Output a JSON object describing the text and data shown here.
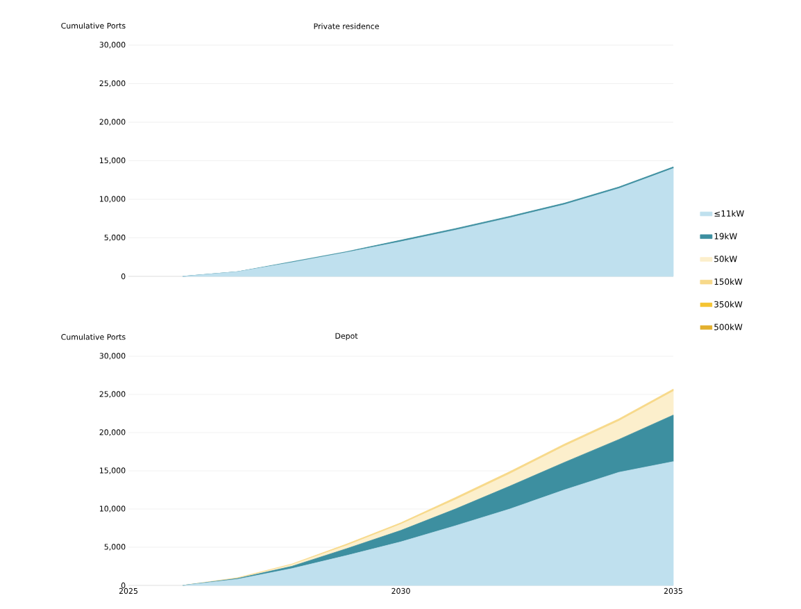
{
  "chart_data": [
    {
      "type": "area",
      "title": "Private residence",
      "ylabel": "Cumulative Ports",
      "stacked": true,
      "grid": "y",
      "legend": false,
      "tick_labels": "y",
      "x": [
        2026,
        2027,
        2028,
        2029,
        2030,
        2031,
        2032,
        2033,
        2034,
        2035
      ],
      "xlim": [
        2025,
        2035
      ],
      "xticks": [
        2025,
        2030,
        2035
      ],
      "ylim": [
        0,
        30000
      ],
      "yticks": [
        0,
        {
          "value": 5000,
          "label": "5,000"
        },
        {
          "value": 10000,
          "label": "10,000"
        },
        {
          "value": 15000,
          "label": "15,000"
        },
        {
          "value": 20000,
          "label": "20,000"
        },
        {
          "value": 25000,
          "label": "25,000"
        },
        {
          "value": 30000,
          "label": "30,000"
        }
      ],
      "series": [
        {
          "color": "#bfe0ee",
          "values": [
            0,
            600,
            1800,
            3100,
            4500,
            6000,
            7600,
            9300,
            11400,
            14000
          ]
        },
        {
          "color": "#3d8fa0",
          "values": [
            0,
            0,
            100,
            100,
            200,
            200,
            200,
            200,
            200,
            200
          ]
        }
      ]
    },
    {
      "type": "area",
      "title": "Depot",
      "ylabel": "Cumulative Ports",
      "stacked": true,
      "grid": "y",
      "legend": "right",
      "x": [
        2026,
        2027,
        2028,
        2029,
        2030,
        2031,
        2032,
        2033,
        2034,
        2035
      ],
      "xlim": [
        2025,
        2035
      ],
      "xticks": [
        2025,
        2030,
        2035
      ],
      "ylim": [
        0,
        30000
      ],
      "yticks": [
        0,
        {
          "value": 5000,
          "label": "5,000"
        },
        {
          "value": 10000,
          "label": "10,000"
        },
        {
          "value": 15000,
          "label": "15,000"
        },
        {
          "value": 20000,
          "label": "20,000"
        },
        {
          "value": 25000,
          "label": "25,000"
        },
        {
          "value": 30000,
          "label": "30,000"
        }
      ],
      "series": [
        {
          "name": "≤11kW",
          "color": "#bfe0ee",
          "values": [
            0,
            800,
            2200,
            3900,
            5700,
            7800,
            10000,
            12500,
            14800,
            16200
          ]
        },
        {
          "name": "19kW",
          "color": "#3d8fa0",
          "values": [
            0,
            100,
            300,
            900,
            1500,
            2200,
            3000,
            3600,
            4300,
            6100
          ]
        },
        {
          "name": "50kW",
          "color": "#fcefcc",
          "values": [
            0,
            0,
            200,
            400,
            800,
            1200,
            1600,
            2100,
            2400,
            3100
          ]
        },
        {
          "name": "150kW",
          "color": "#f7d98a",
          "values": [
            0,
            100,
            100,
            200,
            200,
            300,
            300,
            300,
            300,
            300
          ]
        },
        {
          "name": "350kW",
          "color": "#f5c431",
          "values": [
            null,
            null,
            null,
            null,
            null,
            null,
            null,
            null,
            null,
            null
          ]
        },
        {
          "name": "500kW",
          "color": "#e3b02e",
          "values": [
            null,
            null,
            null,
            null,
            null,
            null,
            null,
            null,
            null,
            null
          ]
        }
      ]
    }
  ]
}
